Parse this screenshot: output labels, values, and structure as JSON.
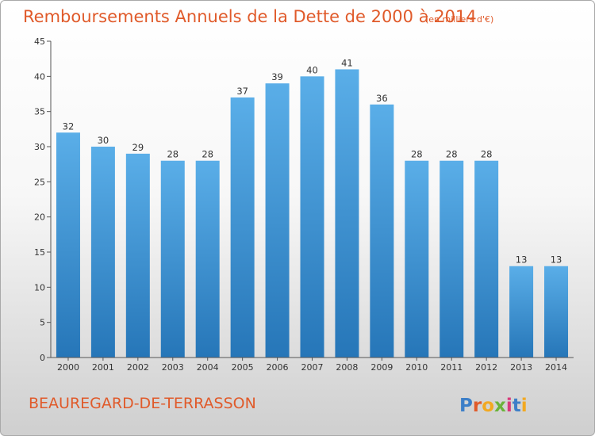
{
  "chart_data": {
    "type": "bar",
    "title": "Remboursements Annuels de la Dette de 2000 à 2014",
    "subtitle": "(en milliers d'€)",
    "categories": [
      "2000",
      "2001",
      "2002",
      "2003",
      "2004",
      "2005",
      "2006",
      "2007",
      "2008",
      "2009",
      "2010",
      "2011",
      "2012",
      "2013",
      "2014"
    ],
    "values": [
      32,
      30,
      29,
      28,
      28,
      37,
      39,
      40,
      41,
      36,
      28,
      28,
      28,
      13,
      13
    ],
    "ylim": [
      0,
      45
    ],
    "yticks": [
      0,
      5,
      10,
      15,
      20,
      25,
      30,
      35,
      40,
      45
    ],
    "xlabel": "",
    "ylabel": "",
    "grid": false,
    "bar_color_top": "#5aaee8",
    "bar_color_bottom": "#2676b8"
  },
  "footer": {
    "place": "BEAUREGARD-DE-TERRASSON",
    "logo": "Proxiti"
  }
}
